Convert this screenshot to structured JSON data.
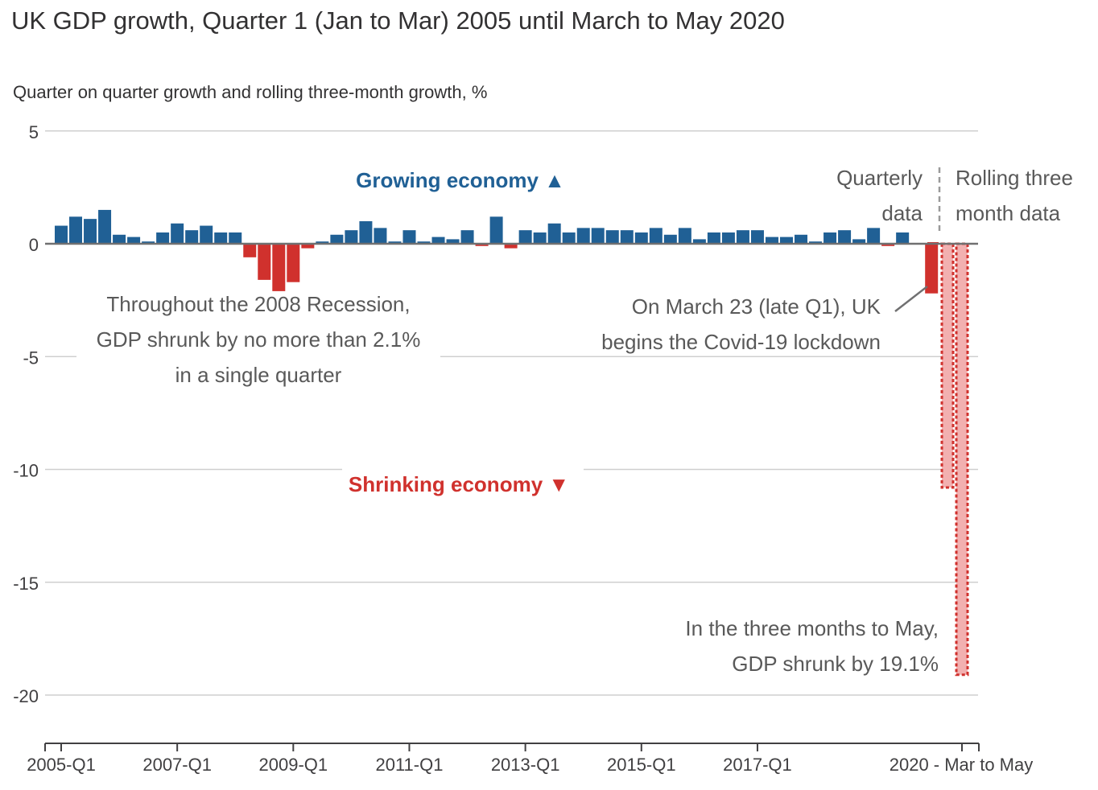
{
  "title": "UK GDP growth, Quarter 1 (Jan to Mar) 2005 until March to May 2020",
  "subtitle": "Quarter on quarter growth and rolling three-month growth, %",
  "colors": {
    "growth": "#206095",
    "shrink": "#d0312d",
    "rolling_fill": "#f2b0b0",
    "grid": "#cfcfcf",
    "zero": "#707071",
    "annotation": "#595959"
  },
  "annotations": {
    "growing": "Growing economy ▲",
    "shrinking": "Shrinking economy ▼",
    "recession_line1": "Throughout the 2008 Recession,",
    "recession_line2": "GDP shrunk by no more than 2.1%",
    "recession_line3": "in a single quarter",
    "lockdown_line1": "On March 23 (late Q1), UK",
    "lockdown_line2": "begins the Covid-19 lockdown",
    "quarterly_line1": "Quarterly",
    "quarterly_line2": "data",
    "rolling_line1": "Rolling three",
    "rolling_line2": "month data",
    "may_line1": "In the three months to May,",
    "may_line2": "GDP shrunk by 19.1%"
  },
  "chart_data": {
    "type": "bar",
    "title": "UK GDP growth, Quarter 1 (Jan to Mar) 2005 until March to May 2020",
    "ylabel": "Quarter on quarter growth and rolling three-month growth, %",
    "ylim": [
      -22,
      5
    ],
    "yticks": [
      5,
      0,
      -5,
      -10,
      -15,
      -20
    ],
    "grid": true,
    "xtick_labels": [
      "2005-Q1",
      "2007-Q1",
      "2009-Q1",
      "2011-Q1",
      "2013-Q1",
      "2015-Q1",
      "2017-Q1",
      "2020 - Mar to May"
    ],
    "series": [
      {
        "name": "Quarterly data",
        "categories": [
          "2005-Q1",
          "2005-Q2",
          "2005-Q3",
          "2005-Q4",
          "2006-Q1",
          "2006-Q2",
          "2006-Q3",
          "2006-Q4",
          "2007-Q1",
          "2007-Q2",
          "2007-Q3",
          "2007-Q4",
          "2008-Q1",
          "2008-Q2",
          "2008-Q3",
          "2008-Q4",
          "2009-Q1",
          "2009-Q2",
          "2009-Q3",
          "2009-Q4",
          "2010-Q1",
          "2010-Q2",
          "2010-Q3",
          "2010-Q4",
          "2011-Q1",
          "2011-Q2",
          "2011-Q3",
          "2011-Q4",
          "2012-Q1",
          "2012-Q2",
          "2012-Q3",
          "2012-Q4",
          "2013-Q1",
          "2013-Q2",
          "2013-Q3",
          "2013-Q4",
          "2014-Q1",
          "2014-Q2",
          "2014-Q3",
          "2014-Q4",
          "2015-Q1",
          "2015-Q2",
          "2015-Q3",
          "2015-Q4",
          "2016-Q1",
          "2016-Q2",
          "2016-Q3",
          "2016-Q4",
          "2017-Q1",
          "2017-Q2",
          "2017-Q3",
          "2017-Q4",
          "2018-Q1",
          "2018-Q2",
          "2018-Q3",
          "2018-Q4",
          "2019-Q1",
          "2019-Q2",
          "2019-Q3",
          "2019-Q4",
          "2020-Q1"
        ],
        "values": [
          0.8,
          1.2,
          1.1,
          1.5,
          0.4,
          0.3,
          0.1,
          0.5,
          0.9,
          0.6,
          0.8,
          0.5,
          0.5,
          -0.6,
          -1.6,
          -2.1,
          -1.7,
          -0.2,
          0.1,
          0.4,
          0.6,
          1.0,
          0.7,
          0.1,
          0.6,
          0.1,
          0.3,
          0.2,
          0.6,
          -0.1,
          1.2,
          -0.2,
          0.6,
          0.5,
          0.9,
          0.5,
          0.7,
          0.7,
          0.6,
          0.6,
          0.5,
          0.7,
          0.4,
          0.7,
          0.2,
          0.5,
          0.5,
          0.6,
          0.6,
          0.3,
          0.3,
          0.4,
          0.1,
          0.5,
          0.6,
          0.2,
          0.7,
          -0.1,
          0.5,
          0.0,
          -2.2
        ]
      },
      {
        "name": "Rolling three month data",
        "categories": [
          "Jan to Mar",
          "Feb to Apr",
          "Mar to May"
        ],
        "values": [
          0.1,
          -10.8,
          -19.1
        ]
      }
    ]
  }
}
